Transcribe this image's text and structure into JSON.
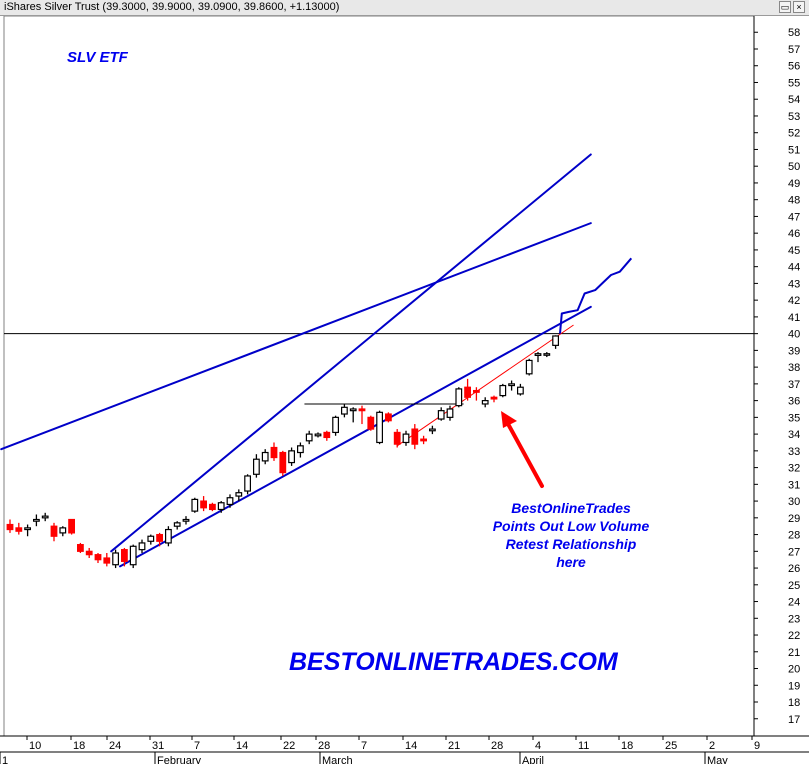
{
  "window": {
    "title": "iShares Silver Trust (39.3000, 39.9000, 39.0900, 39.8600, +1.13000)",
    "restore_icon": "restore-icon",
    "close_icon": "close-icon"
  },
  "chart_data": {
    "type": "candlestick",
    "ticker_label": "SLV ETF",
    "watermark": "BESTONLINETRADES.COM",
    "annotation": [
      "BestOnlineTrades",
      "Points Out Low Volume",
      "Retest Relationship",
      "here"
    ],
    "ylim": [
      16,
      59
    ],
    "y_ticks": [
      17,
      18,
      19,
      20,
      21,
      22,
      23,
      24,
      25,
      26,
      27,
      28,
      29,
      30,
      31,
      32,
      33,
      34,
      35,
      36,
      37,
      38,
      39,
      40,
      41,
      42,
      43,
      44,
      45,
      46,
      47,
      48,
      49,
      50,
      51,
      52,
      53,
      54,
      55,
      56,
      57,
      58
    ],
    "x_day_ticks": [
      "10",
      "18",
      "24",
      "31",
      "7",
      "14",
      "22",
      "28",
      "7",
      "14",
      "21",
      "28",
      "4",
      "11",
      "18",
      "25",
      "2",
      "9"
    ],
    "x_month_labels": [
      "1",
      "February",
      "March",
      "April",
      "May"
    ],
    "horizontal_line": 40,
    "colors": {
      "up_candle": "#000000",
      "down_candle": "#ff0000",
      "trendline": "#0000c8",
      "support_line": "#ff0000",
      "annotation_text": "#0000ee",
      "arrow": "#ff0000"
    },
    "candles": [
      {
        "o": 28.6,
        "h": 28.9,
        "l": 28.1,
        "c": 28.3
      },
      {
        "o": 28.4,
        "h": 28.7,
        "l": 28.0,
        "c": 28.2
      },
      {
        "o": 28.3,
        "h": 28.6,
        "l": 27.9,
        "c": 28.4
      },
      {
        "o": 28.8,
        "h": 29.2,
        "l": 28.5,
        "c": 28.9
      },
      {
        "o": 29.0,
        "h": 29.3,
        "l": 28.8,
        "c": 29.1
      },
      {
        "o": 28.5,
        "h": 28.7,
        "l": 27.6,
        "c": 27.9
      },
      {
        "o": 28.1,
        "h": 28.5,
        "l": 27.9,
        "c": 28.4
      },
      {
        "o": 28.9,
        "h": 28.9,
        "l": 28.0,
        "c": 28.1
      },
      {
        "o": 27.4,
        "h": 27.5,
        "l": 26.9,
        "c": 27.0
      },
      {
        "o": 27.0,
        "h": 27.2,
        "l": 26.6,
        "c": 26.8
      },
      {
        "o": 26.8,
        "h": 26.9,
        "l": 26.3,
        "c": 26.5
      },
      {
        "o": 26.6,
        "h": 26.9,
        "l": 26.1,
        "c": 26.3
      },
      {
        "o": 26.2,
        "h": 27.1,
        "l": 26.0,
        "c": 26.9
      },
      {
        "o": 27.1,
        "h": 27.2,
        "l": 26.1,
        "c": 26.4
      },
      {
        "o": 26.2,
        "h": 27.4,
        "l": 26.0,
        "c": 27.3
      },
      {
        "o": 27.1,
        "h": 27.7,
        "l": 26.9,
        "c": 27.5
      },
      {
        "o": 27.6,
        "h": 28.0,
        "l": 27.4,
        "c": 27.9
      },
      {
        "o": 28.0,
        "h": 28.1,
        "l": 27.3,
        "c": 27.6
      },
      {
        "o": 27.5,
        "h": 28.5,
        "l": 27.3,
        "c": 28.3
      },
      {
        "o": 28.5,
        "h": 28.8,
        "l": 28.3,
        "c": 28.7
      },
      {
        "o": 28.8,
        "h": 29.1,
        "l": 28.6,
        "c": 28.9
      },
      {
        "o": 29.4,
        "h": 30.2,
        "l": 29.3,
        "c": 30.1
      },
      {
        "o": 30.0,
        "h": 30.3,
        "l": 29.4,
        "c": 29.6
      },
      {
        "o": 29.8,
        "h": 29.9,
        "l": 29.4,
        "c": 29.5
      },
      {
        "o": 29.5,
        "h": 30.0,
        "l": 29.3,
        "c": 29.9
      },
      {
        "o": 29.8,
        "h": 30.4,
        "l": 29.6,
        "c": 30.2
      },
      {
        "o": 30.3,
        "h": 30.7,
        "l": 30.0,
        "c": 30.5
      },
      {
        "o": 30.6,
        "h": 31.6,
        "l": 30.4,
        "c": 31.5
      },
      {
        "o": 31.6,
        "h": 32.8,
        "l": 31.4,
        "c": 32.5
      },
      {
        "o": 32.4,
        "h": 33.1,
        "l": 32.2,
        "c": 32.9
      },
      {
        "o": 33.2,
        "h": 33.5,
        "l": 32.4,
        "c": 32.6
      },
      {
        "o": 32.9,
        "h": 33.0,
        "l": 31.5,
        "c": 31.7
      },
      {
        "o": 32.3,
        "h": 33.2,
        "l": 32.1,
        "c": 33.0
      },
      {
        "o": 32.9,
        "h": 33.5,
        "l": 32.6,
        "c": 33.3
      },
      {
        "o": 33.6,
        "h": 34.2,
        "l": 33.4,
        "c": 34.0
      },
      {
        "o": 33.9,
        "h": 34.1,
        "l": 33.8,
        "c": 34.0
      },
      {
        "o": 34.1,
        "h": 34.2,
        "l": 33.6,
        "c": 33.8
      },
      {
        "o": 34.1,
        "h": 35.1,
        "l": 33.9,
        "c": 35.0
      },
      {
        "o": 35.2,
        "h": 35.8,
        "l": 35.0,
        "c": 35.6
      },
      {
        "o": 35.4,
        "h": 35.6,
        "l": 34.7,
        "c": 35.5
      },
      {
        "o": 35.5,
        "h": 35.7,
        "l": 34.6,
        "c": 35.4
      },
      {
        "o": 35.0,
        "h": 35.1,
        "l": 34.2,
        "c": 34.3
      },
      {
        "o": 33.5,
        "h": 35.4,
        "l": 33.4,
        "c": 35.3
      },
      {
        "o": 35.2,
        "h": 35.3,
        "l": 34.7,
        "c": 34.8
      },
      {
        "o": 34.1,
        "h": 34.3,
        "l": 33.2,
        "c": 33.4
      },
      {
        "o": 33.5,
        "h": 34.2,
        "l": 33.3,
        "c": 34.0
      },
      {
        "o": 34.3,
        "h": 34.6,
        "l": 33.1,
        "c": 33.4
      },
      {
        "o": 33.7,
        "h": 33.9,
        "l": 33.4,
        "c": 33.6
      },
      {
        "o": 34.2,
        "h": 34.5,
        "l": 34.0,
        "c": 34.3
      },
      {
        "o": 34.9,
        "h": 35.6,
        "l": 34.8,
        "c": 35.4
      },
      {
        "o": 35.0,
        "h": 35.7,
        "l": 34.8,
        "c": 35.5
      },
      {
        "o": 35.7,
        "h": 36.8,
        "l": 35.6,
        "c": 36.7
      },
      {
        "o": 36.8,
        "h": 37.3,
        "l": 36.0,
        "c": 36.2
      },
      {
        "o": 36.6,
        "h": 36.8,
        "l": 36.0,
        "c": 36.5
      },
      {
        "o": 35.8,
        "h": 36.2,
        "l": 35.6,
        "c": 36.0
      },
      {
        "o": 36.2,
        "h": 36.3,
        "l": 35.9,
        "c": 36.1
      },
      {
        "o": 36.3,
        "h": 37.0,
        "l": 36.2,
        "c": 36.9
      },
      {
        "o": 36.9,
        "h": 37.2,
        "l": 36.6,
        "c": 37.0
      },
      {
        "o": 36.4,
        "h": 37.0,
        "l": 36.3,
        "c": 36.8
      },
      {
        "o": 37.6,
        "h": 38.5,
        "l": 37.5,
        "c": 38.4
      },
      {
        "o": 38.7,
        "h": 38.9,
        "l": 38.3,
        "c": 38.8
      },
      {
        "o": 38.8,
        "h": 38.9,
        "l": 38.6,
        "c": 38.8
      },
      {
        "o": 39.3,
        "h": 39.9,
        "l": 39.09,
        "c": 39.86
      }
    ],
    "trendlines": [
      {
        "name": "long-upper-channel",
        "x": [
          -1,
          66
        ],
        "y": [
          33.1,
          46.6
        ],
        "color": "#0000c8"
      },
      {
        "name": "steep-upper-channel",
        "x": [
          11.5,
          66
        ],
        "y": [
          27.0,
          50.7
        ],
        "color": "#0000c8"
      },
      {
        "name": "lower-channel",
        "x": [
          12.5,
          66
        ],
        "y": [
          26.1,
          41.6
        ],
        "color": "#0000c8"
      },
      {
        "name": "consolidation-top",
        "x": [
          33.5,
          51.5
        ],
        "y": [
          35.8,
          35.8
        ],
        "color": "#000000"
      },
      {
        "name": "support-retest",
        "x": [
          44,
          64
        ],
        "y": [
          33.3,
          40.5
        ],
        "color": "#ff0000"
      }
    ],
    "projection_path": {
      "x": [
        62.5,
        62.7,
        63.5,
        64.5,
        65.3,
        66.5,
        67.3,
        68.3,
        69.3,
        70.6
      ],
      "y": [
        40.0,
        41.2,
        41.3,
        41.4,
        42.4,
        42.6,
        43.0,
        43.5,
        43.7,
        44.5
      ]
    }
  }
}
